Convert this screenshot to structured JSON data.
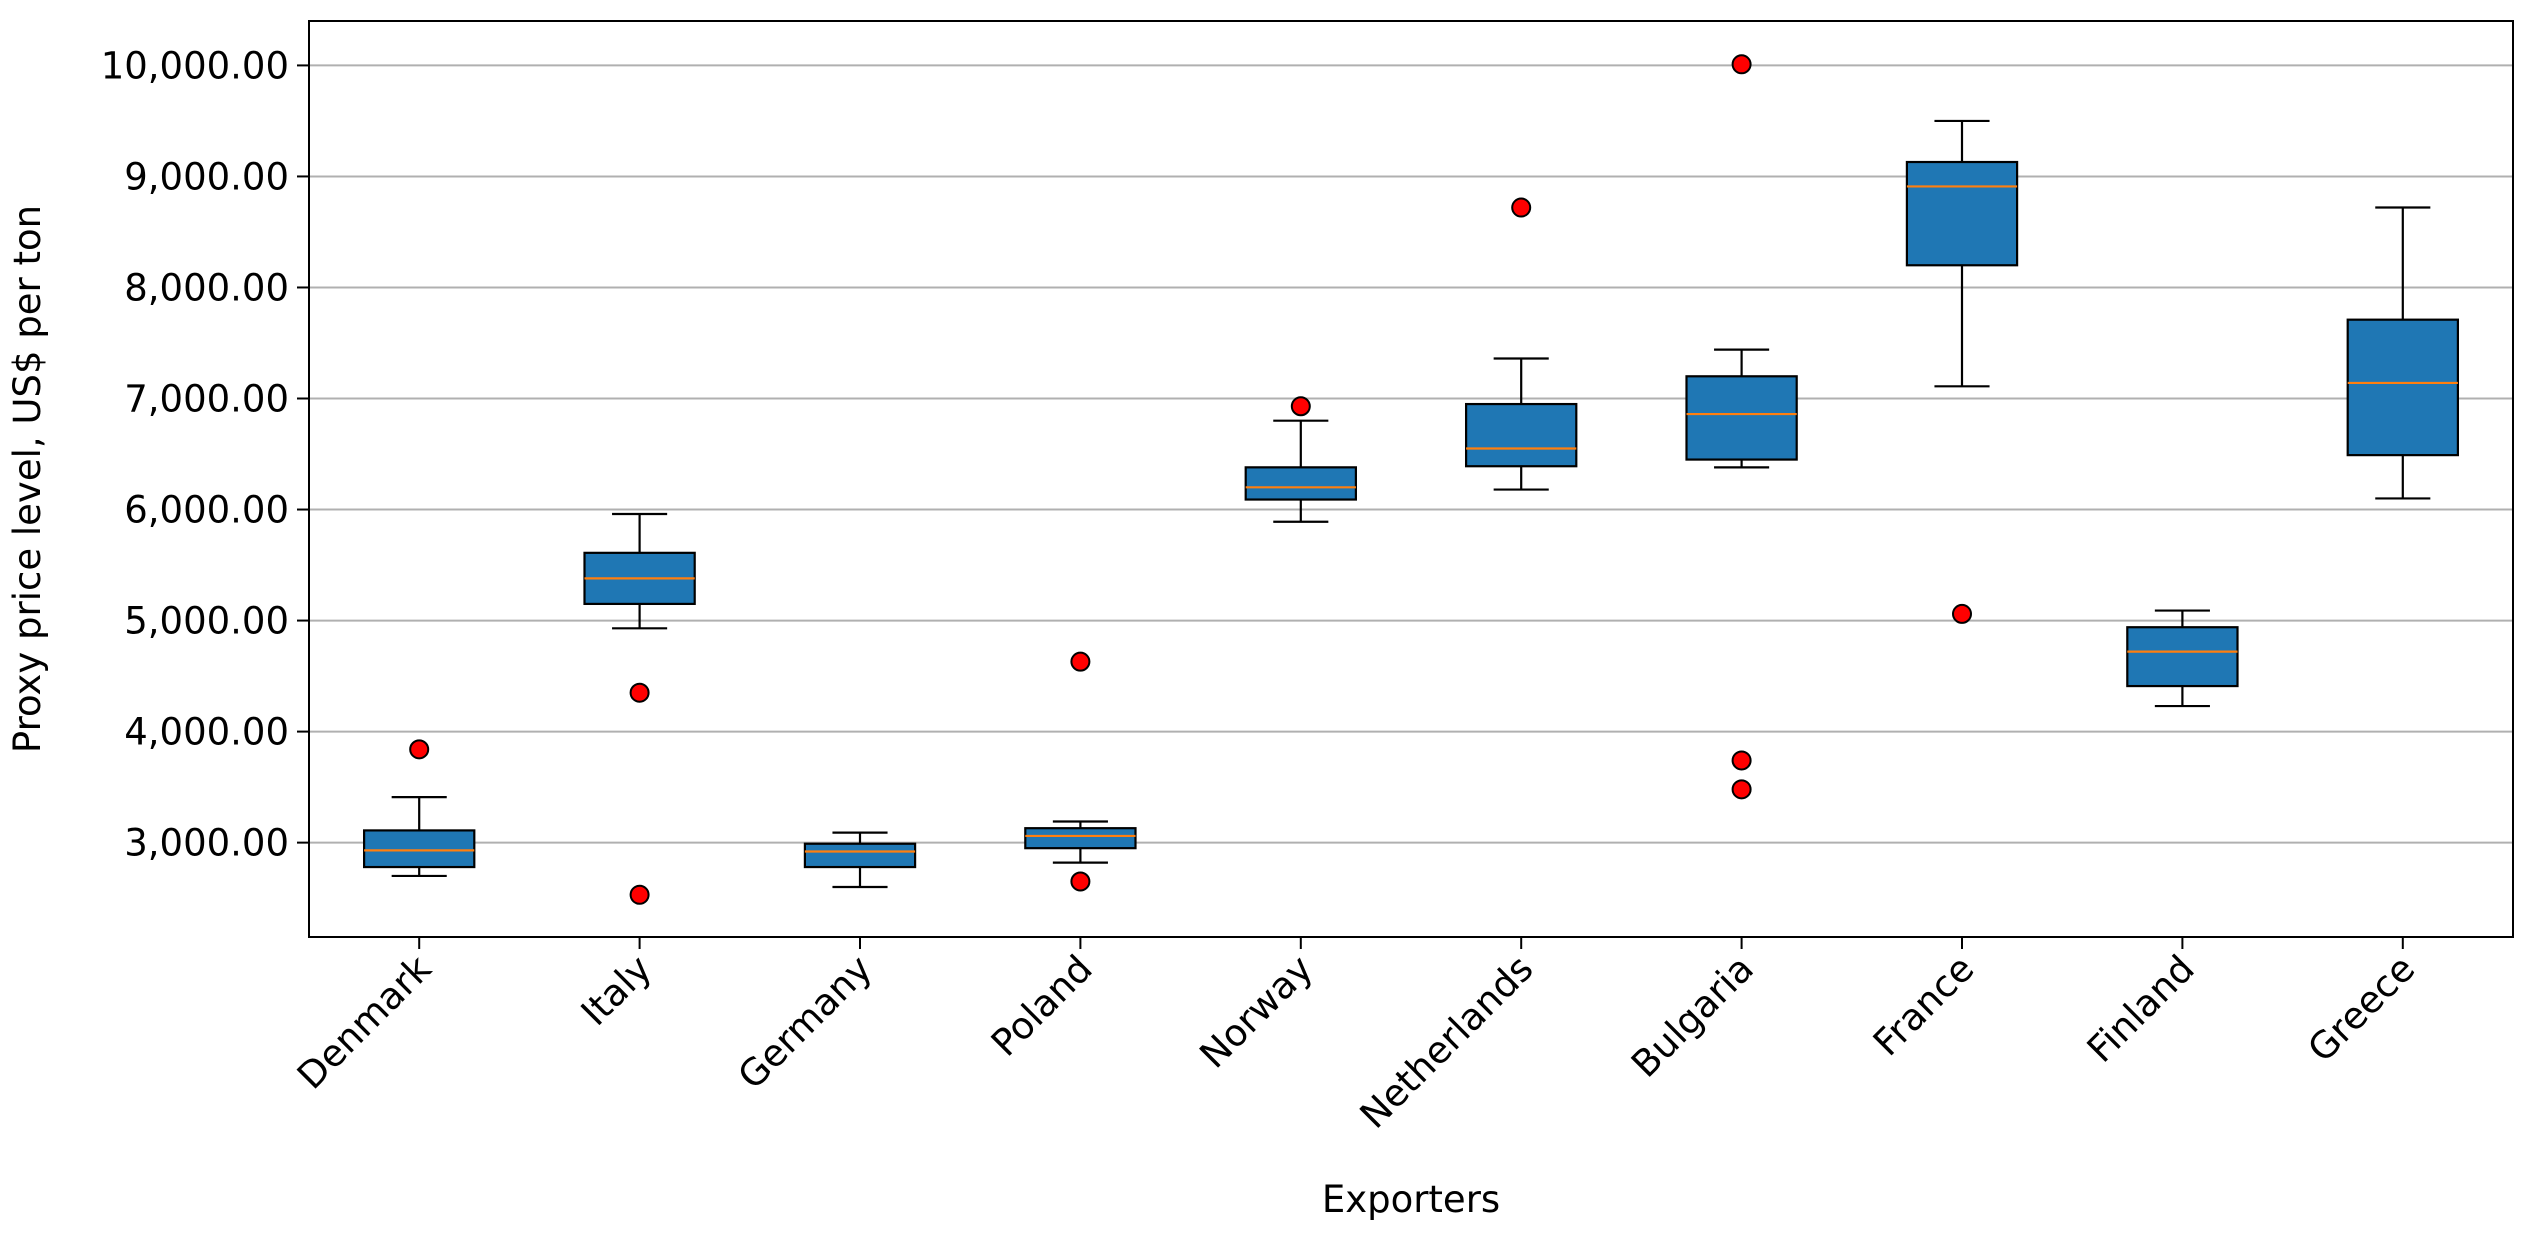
{
  "chart_data": {
    "type": "box",
    "title": "",
    "xlabel": "Exporters",
    "ylabel": "Proxy price level, US$ per ton",
    "ylim": [
      2150,
      10400
    ],
    "yticks": [
      3000,
      4000,
      5000,
      6000,
      7000,
      8000,
      9000,
      10000
    ],
    "ytick_labels": [
      "3,000.00",
      "4,000.00",
      "5,000.00",
      "6,000.00",
      "7,000.00",
      "8,000.00",
      "9,000.00",
      "10,000.00"
    ],
    "grid": "horizontal",
    "colors": {
      "box_fill": "#1f77b4",
      "median": "#ff7f0e",
      "outlier_fill": "#ff0000",
      "grid": "#b0b0b0"
    },
    "categories": [
      "Denmark",
      "Italy",
      "Germany",
      "Poland",
      "Norway",
      "Netherlands",
      "Bulgaria",
      "France",
      "Finland",
      "Greece"
    ],
    "boxes": [
      {
        "whisker_low": 2700,
        "q1": 2780,
        "median": 2930,
        "q3": 3110,
        "whisker_high": 3410,
        "outliers": [
          3840
        ]
      },
      {
        "whisker_low": 4930,
        "q1": 5150,
        "median": 5380,
        "q3": 5610,
        "whisker_high": 5960,
        "outliers": [
          4350,
          2530
        ]
      },
      {
        "whisker_low": 2600,
        "q1": 2780,
        "median": 2920,
        "q3": 2990,
        "whisker_high": 3090,
        "outliers": []
      },
      {
        "whisker_low": 2820,
        "q1": 2950,
        "median": 3060,
        "q3": 3130,
        "whisker_high": 3190,
        "outliers": [
          4630,
          2650
        ]
      },
      {
        "whisker_low": 5890,
        "q1": 6090,
        "median": 6200,
        "q3": 6380,
        "whisker_high": 6800,
        "outliers": [
          6930
        ]
      },
      {
        "whisker_low": 6180,
        "q1": 6390,
        "median": 6550,
        "q3": 6950,
        "whisker_high": 7360,
        "outliers": [
          8720
        ]
      },
      {
        "whisker_low": 6380,
        "q1": 6450,
        "median": 6860,
        "q3": 7200,
        "whisker_high": 7440,
        "outliers": [
          10010,
          3740,
          3480
        ]
      },
      {
        "whisker_low": 7110,
        "q1": 8200,
        "median": 8910,
        "q3": 9130,
        "whisker_high": 9500,
        "outliers": [
          5060
        ]
      },
      {
        "whisker_low": 4230,
        "q1": 4410,
        "median": 4720,
        "q3": 4940,
        "whisker_high": 5090,
        "outliers": []
      },
      {
        "whisker_low": 6100,
        "q1": 6490,
        "median": 7140,
        "q3": 7710,
        "whisker_high": 8720,
        "outliers": []
      }
    ]
  }
}
